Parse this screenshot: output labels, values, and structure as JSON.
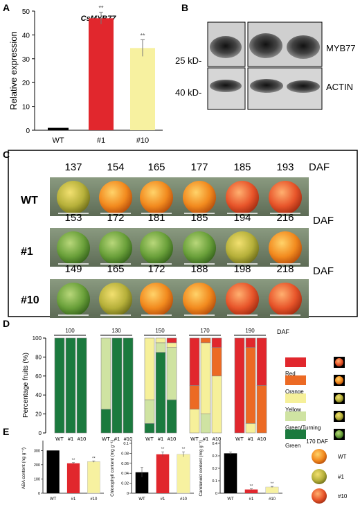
{
  "panels": {
    "A": "A",
    "B": "B",
    "C": "C",
    "D": "D",
    "E": "E"
  },
  "panel_A": {
    "ylabel": "Relative expression",
    "yticks": [
      "0",
      "10",
      "20",
      "30",
      "40",
      "50"
    ]
  },
  "panel_B": {
    "marker_top": "25 kD-",
    "marker_bottom": "40 kD-",
    "label_top": "MYB77",
    "label_bottom": "ACTIN"
  },
  "panel_C": {
    "daf_label": "DAF",
    "rows": [
      {
        "label": "WT",
        "days": [
          "137",
          "154",
          "165",
          "177",
          "185",
          "193"
        ]
      },
      {
        "label": "#1",
        "days": [
          "153",
          "172",
          "181",
          "185",
          "194",
          "216"
        ]
      },
      {
        "label": "#10",
        "days": [
          "149",
          "165",
          "172",
          "188",
          "198",
          "218"
        ]
      }
    ]
  },
  "panel_E": {
    "fruit_caption": "170 DAF",
    "fruit_labels": [
      "WT",
      "#1",
      "#10"
    ]
  },
  "colors": {
    "red": "#e1272d",
    "orange": "#ec6a24",
    "yellow": "#f6f09a",
    "turning": "#cfe3a2",
    "green": "#1b7a3e",
    "bar_yellow": "#f7f1a0"
  },
  "chart_data": [
    {
      "id": "A",
      "type": "bar",
      "title": "CsMYB77",
      "categories": [
        "WT",
        "#1",
        "#10"
      ],
      "values": [
        1,
        47,
        34.5
      ],
      "errors": [
        0,
        2.5,
        3.5
      ],
      "significance": [
        "",
        "**",
        "**"
      ],
      "xlabel": "",
      "ylabel": "Relative expression",
      "ylim": [
        0,
        50
      ],
      "yticks": [
        0,
        10,
        20,
        30,
        40,
        50
      ]
    },
    {
      "id": "D",
      "type": "bar",
      "stacked": true,
      "ylabel": "Percentage fruits (%)",
      "ylim": [
        0,
        100
      ],
      "yticks": [
        0,
        20,
        40,
        60,
        80,
        100
      ],
      "group_unit": "DAF",
      "groups": [
        "100",
        "130",
        "150",
        "170",
        "190"
      ],
      "categories": [
        "WT",
        "#1",
        "#10"
      ],
      "series": [
        {
          "name": "Green",
          "values": [
            [
              100,
              100,
              100
            ],
            [
              25,
              100,
              100
            ],
            [
              10,
              85,
              35
            ],
            [
              0,
              0,
              0
            ],
            [
              0,
              0,
              0
            ]
          ]
        },
        {
          "name": "Green/Turning",
          "values": [
            [
              0,
              0,
              0
            ],
            [
              75,
              0,
              0
            ],
            [
              25,
              10,
              55
            ],
            [
              0,
              20,
              0
            ],
            [
              0,
              0,
              0
            ]
          ]
        },
        {
          "name": "Yellow",
          "values": [
            [
              0,
              0,
              0
            ],
            [
              0,
              0,
              0
            ],
            [
              65,
              5,
              5
            ],
            [
              25,
              75,
              60
            ],
            [
              0,
              10,
              0
            ]
          ]
        },
        {
          "name": "Orange",
          "values": [
            [
              0,
              0,
              0
            ],
            [
              0,
              0,
              0
            ],
            [
              0,
              0,
              0
            ],
            [
              25,
              5,
              30
            ],
            [
              0,
              80,
              50
            ]
          ]
        },
        {
          "name": "Red",
          "values": [
            [
              0,
              0,
              0
            ],
            [
              0,
              0,
              0
            ],
            [
              0,
              0,
              5
            ],
            [
              50,
              0,
              10
            ],
            [
              100,
              10,
              50
            ]
          ]
        }
      ],
      "legend": [
        "Red",
        "Orange",
        "Yellow",
        "Green/Turning",
        "Green"
      ]
    },
    {
      "id": "E1",
      "type": "bar",
      "categories": [
        "WT",
        "#1",
        "#10"
      ],
      "values": [
        300,
        210,
        222
      ],
      "errors": [
        0,
        5,
        5
      ],
      "significance": [
        "",
        "**",
        "**"
      ],
      "ylabel": "ABA content (ng g⁻¹)",
      "ylim": [
        0,
        350
      ],
      "yticks": [
        0,
        100,
        200,
        300
      ]
    },
    {
      "id": "E2",
      "type": "bar",
      "categories": [
        "WT",
        "#1",
        "#10"
      ],
      "values": [
        0.042,
        0.078,
        0.078
      ],
      "errors": [
        0.01,
        0.005,
        0.005
      ],
      "significance": [
        "",
        "**",
        "**"
      ],
      "ylabel": "Chlorophyll content (mg g⁻¹)",
      "ylim": [
        0,
        0.1
      ],
      "yticks": [
        0,
        0.02,
        0.04,
        0.06,
        0.08,
        0.1
      ]
    },
    {
      "id": "E3",
      "type": "bar",
      "categories": [
        "WT",
        "#1",
        "#10"
      ],
      "values": [
        0.32,
        0.03,
        0.05
      ],
      "errors": [
        0.01,
        0.005,
        0.005
      ],
      "significance": [
        "",
        "**",
        "**"
      ],
      "ylabel": "Carotenoid content (mg g⁻¹)",
      "ylim": [
        0,
        0.4
      ],
      "yticks": [
        0,
        0.1,
        0.2,
        0.3,
        0.4
      ]
    }
  ]
}
